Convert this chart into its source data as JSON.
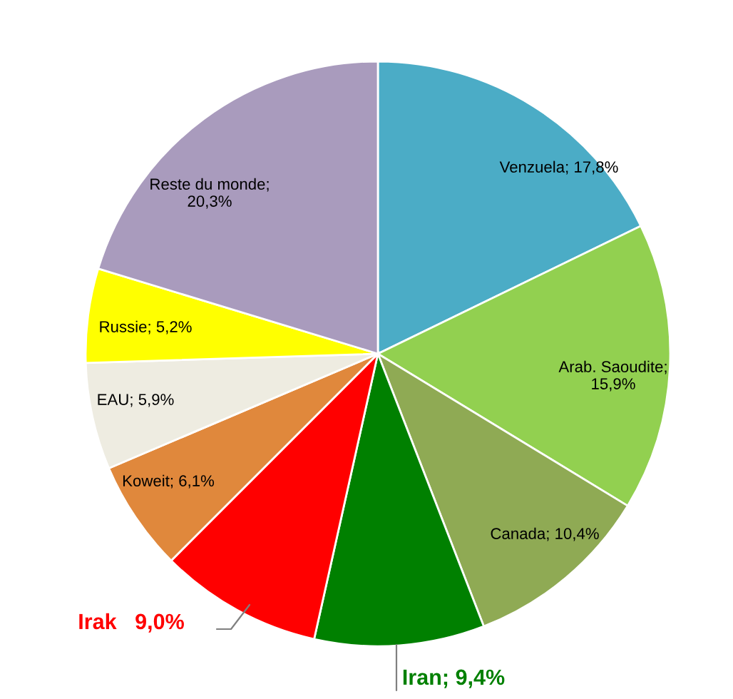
{
  "chart_data": {
    "type": "pie",
    "categories": [
      "Venzuela",
      "Arab. Saoudite",
      "Canada",
      "Iran",
      "Irak",
      "Koweit",
      "EAU",
      "Russie",
      "Reste du monde"
    ],
    "values": [
      17.8,
      15.9,
      10.4,
      9.4,
      9.0,
      6.1,
      5.9,
      5.2,
      20.3
    ],
    "colors": [
      "#4bacc6",
      "#92d050",
      "#8faa54",
      "#008000",
      "#ff0000",
      "#e0883c",
      "#eeece1",
      "#ffff00",
      "#a99bbd"
    ],
    "value_labels": [
      "; 17,8%",
      ";\n15,9%",
      "; 10,4%",
      "; 9,4%",
      "   9,0%",
      "; 6,1%",
      "; 5,9%",
      "; 5,2%",
      ";\n20,3%"
    ],
    "legend": false
  }
}
